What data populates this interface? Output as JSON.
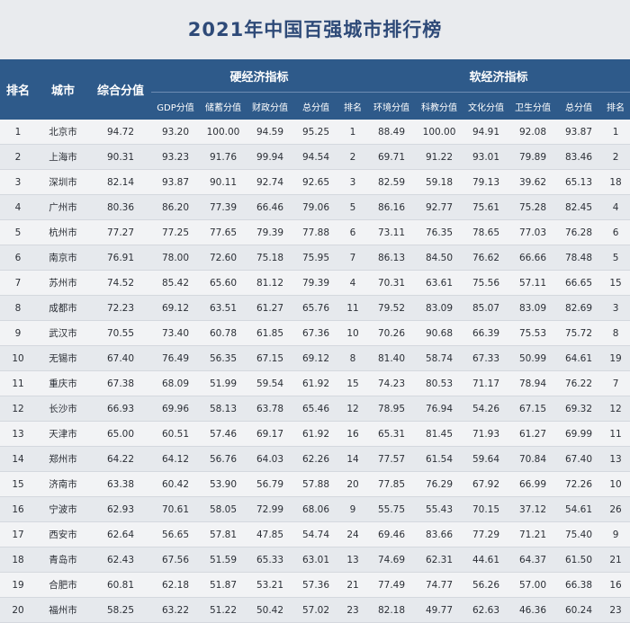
{
  "title": "2021年中国百强城市排行榜",
  "headers": {
    "rank": "排名",
    "city": "城市",
    "score": "综合分值",
    "hard_group": "硬经济指标",
    "soft_group": "软经济指标",
    "hard_sub": [
      "GDP分值",
      "储蓄分值",
      "财政分值",
      "总分值",
      "排名"
    ],
    "soft_sub": [
      "环境分值",
      "科教分值",
      "文化分值",
      "卫生分值",
      "总分值",
      "排名"
    ]
  },
  "rows": [
    [
      "1",
      "北京市",
      "94.72",
      "93.20",
      "100.00",
      "94.59",
      "95.25",
      "1",
      "88.49",
      "100.00",
      "94.91",
      "92.08",
      "93.87",
      "1"
    ],
    [
      "2",
      "上海市",
      "90.31",
      "93.23",
      "91.76",
      "99.94",
      "94.54",
      "2",
      "69.71",
      "91.22",
      "93.01",
      "79.89",
      "83.46",
      "2"
    ],
    [
      "3",
      "深圳市",
      "82.14",
      "93.87",
      "90.11",
      "92.74",
      "92.65",
      "3",
      "82.59",
      "59.18",
      "79.13",
      "39.62",
      "65.13",
      "18"
    ],
    [
      "4",
      "广州市",
      "80.36",
      "86.20",
      "77.39",
      "66.46",
      "79.06",
      "5",
      "86.16",
      "92.77",
      "75.61",
      "75.28",
      "82.45",
      "4"
    ],
    [
      "5",
      "杭州市",
      "77.27",
      "77.25",
      "77.65",
      "79.39",
      "77.88",
      "6",
      "73.11",
      "76.35",
      "78.65",
      "77.03",
      "76.28",
      "6"
    ],
    [
      "6",
      "南京市",
      "76.91",
      "78.00",
      "72.60",
      "75.18",
      "75.95",
      "7",
      "86.13",
      "84.50",
      "76.62",
      "66.66",
      "78.48",
      "5"
    ],
    [
      "7",
      "苏州市",
      "74.52",
      "85.42",
      "65.60",
      "81.12",
      "79.39",
      "4",
      "70.31",
      "63.61",
      "75.56",
      "57.11",
      "66.65",
      "15"
    ],
    [
      "8",
      "成都市",
      "72.23",
      "69.12",
      "63.51",
      "61.27",
      "65.76",
      "11",
      "79.52",
      "83.09",
      "85.07",
      "83.09",
      "82.69",
      "3"
    ],
    [
      "9",
      "武汉市",
      "70.55",
      "73.40",
      "60.78",
      "61.85",
      "67.36",
      "10",
      "70.26",
      "90.68",
      "66.39",
      "75.53",
      "75.72",
      "8"
    ],
    [
      "10",
      "无锡市",
      "67.40",
      "76.49",
      "56.35",
      "67.15",
      "69.12",
      "8",
      "81.40",
      "58.74",
      "67.33",
      "50.99",
      "64.61",
      "19"
    ],
    [
      "11",
      "重庆市",
      "67.38",
      "68.09",
      "51.99",
      "59.54",
      "61.92",
      "15",
      "74.23",
      "80.53",
      "71.17",
      "78.94",
      "76.22",
      "7"
    ],
    [
      "12",
      "长沙市",
      "66.93",
      "69.96",
      "58.13",
      "63.78",
      "65.46",
      "12",
      "78.95",
      "76.94",
      "54.26",
      "67.15",
      "69.32",
      "12"
    ],
    [
      "13",
      "天津市",
      "65.00",
      "60.51",
      "57.46",
      "69.17",
      "61.92",
      "16",
      "65.31",
      "81.45",
      "71.93",
      "61.27",
      "69.99",
      "11"
    ],
    [
      "14",
      "郑州市",
      "64.22",
      "64.12",
      "56.76",
      "64.03",
      "62.26",
      "14",
      "77.57",
      "61.54",
      "59.64",
      "70.84",
      "67.40",
      "13"
    ],
    [
      "15",
      "济南市",
      "63.38",
      "60.42",
      "53.90",
      "56.79",
      "57.88",
      "20",
      "77.85",
      "76.29",
      "67.92",
      "66.99",
      "72.26",
      "10"
    ],
    [
      "16",
      "宁波市",
      "62.93",
      "70.61",
      "58.05",
      "72.99",
      "68.06",
      "9",
      "55.75",
      "55.43",
      "70.15",
      "37.12",
      "54.61",
      "26"
    ],
    [
      "17",
      "西安市",
      "62.64",
      "56.65",
      "57.81",
      "47.85",
      "54.74",
      "24",
      "69.46",
      "83.66",
      "77.29",
      "71.21",
      "75.40",
      "9"
    ],
    [
      "18",
      "青岛市",
      "62.43",
      "67.56",
      "51.59",
      "65.33",
      "63.01",
      "13",
      "74.69",
      "62.31",
      "44.61",
      "64.37",
      "61.50",
      "21"
    ],
    [
      "19",
      "合肥市",
      "60.81",
      "62.18",
      "51.87",
      "53.21",
      "57.36",
      "21",
      "77.49",
      "74.77",
      "56.26",
      "57.00",
      "66.38",
      "16"
    ],
    [
      "20",
      "福州市",
      "58.25",
      "63.22",
      "51.22",
      "50.42",
      "57.02",
      "23",
      "82.18",
      "49.77",
      "62.63",
      "46.36",
      "60.24",
      "23"
    ]
  ]
}
